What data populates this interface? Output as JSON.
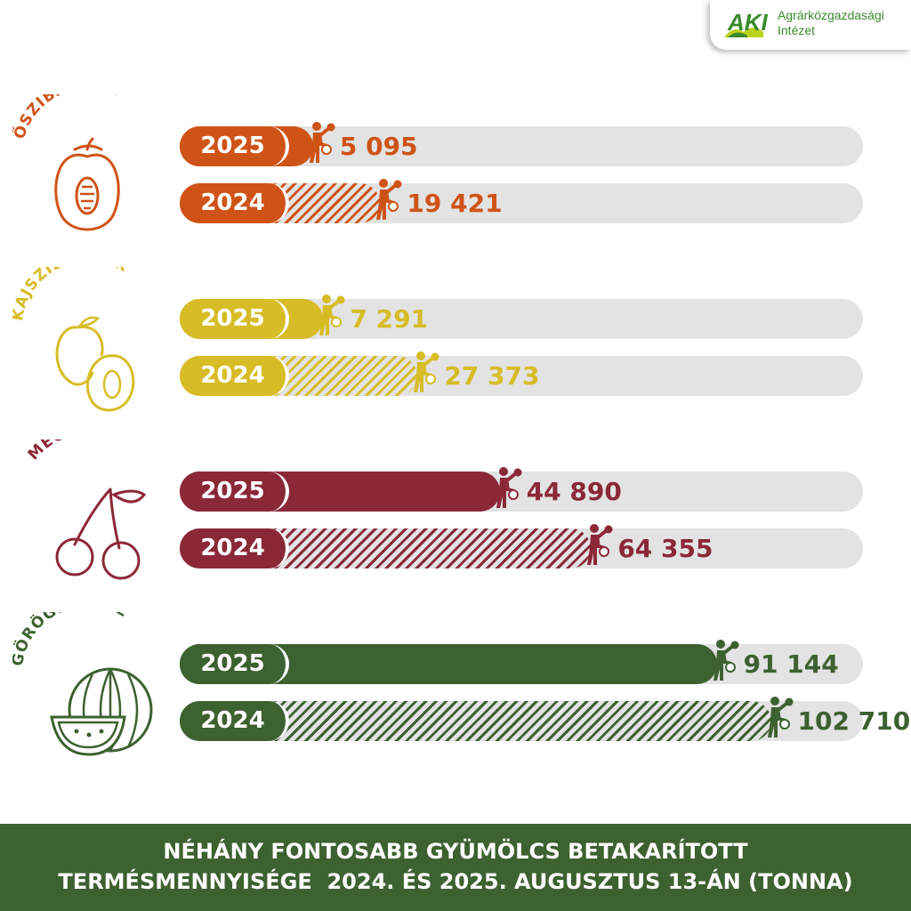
{
  "logo": {
    "mark": "AKI",
    "line1": "Agrárközgazdasági",
    "line2": "Intézet",
    "icon": "aki-logo-icon"
  },
  "footer": {
    "line1": "NÉHÁNY FONTOSABB GYÜMÖLCS BETAKARÍTOTT",
    "line2": "TERMÉSMENNYISÉGE  2024. ÉS 2025. AUGUSZTUS 13-ÁN (TONNA)"
  },
  "chart_data": {
    "type": "bar",
    "orientation": "horizontal",
    "xlim": [
      0,
      110000
    ],
    "units": "tonna",
    "categories": [
      "ŐSZIBARACK",
      "KAJSZIBARACK",
      "MEGGY",
      "GÖRÖGDINNYE"
    ],
    "series": [
      {
        "name": "2025",
        "style": "solid",
        "values": [
          5095,
          7291,
          44890,
          91144
        ]
      },
      {
        "name": "2024",
        "style": "hatched",
        "values": [
          19421,
          27373,
          64355,
          102710
        ]
      }
    ],
    "value_labels": {
      "2025": [
        "5 095",
        "7 291",
        "44 890",
        "91 144"
      ],
      "2024": [
        "19 421",
        "27 373",
        "64 355",
        "102 710"
      ]
    },
    "colors": [
      "#cf5317",
      "#d7bc26",
      "#8b2838",
      "#3d6130"
    ],
    "icons": [
      "peach-icon",
      "apricot-icon",
      "cherry-icon",
      "watermelon-icon"
    ],
    "marker_icon": "fruit-picker-icon"
  }
}
